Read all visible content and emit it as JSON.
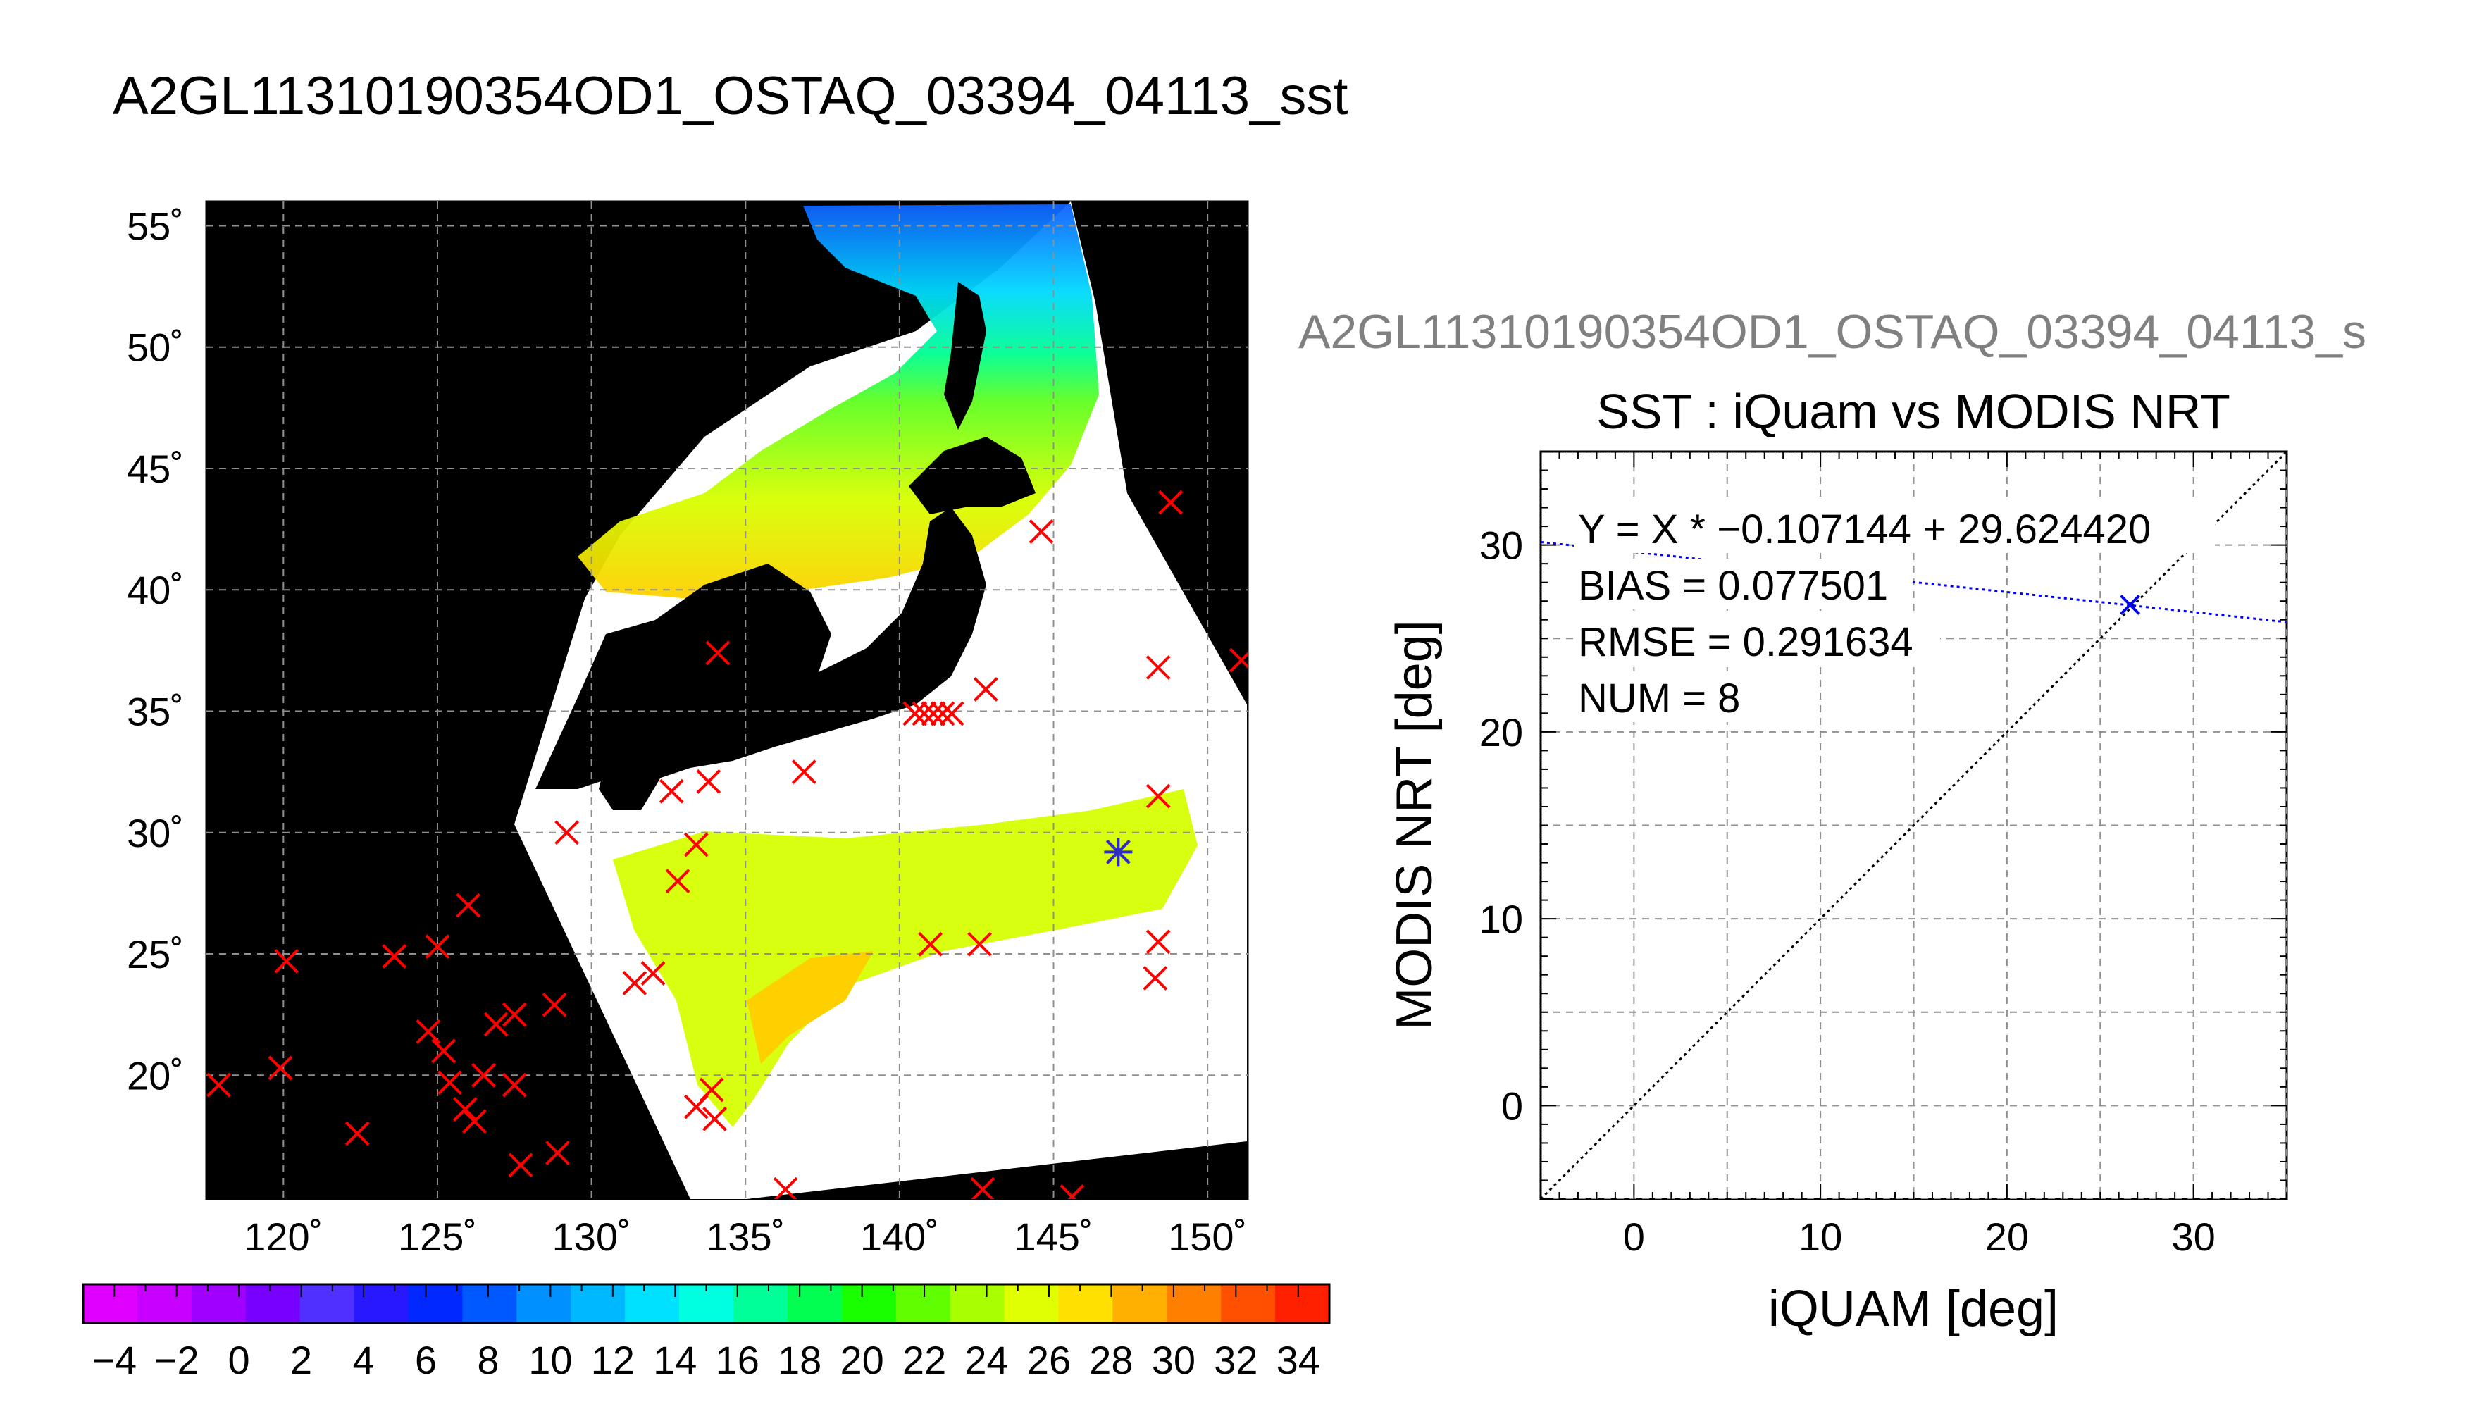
{
  "main_title": "A2GL11310190354OD1_OSTAQ_03394_04113_sst",
  "colors": {
    "background": "#ffffff",
    "land": "#000000",
    "grid": "#909090",
    "marker": "#ff0000",
    "fit_line": "#0000ff",
    "identity_line": "#000000"
  },
  "chart_data": [
    {
      "type": "map",
      "title": "",
      "lon_range": [
        117.5,
        151.3
      ],
      "lat_range": [
        14.9,
        56.0
      ],
      "lon_ticks": [
        120,
        125,
        130,
        135,
        140,
        145,
        150
      ],
      "lat_ticks": [
        20,
        25,
        30,
        35,
        40,
        45,
        50,
        55
      ],
      "lon_tick_labels": [
        "120˚",
        "125˚",
        "130˚",
        "135˚",
        "140˚",
        "145˚",
        "150˚"
      ],
      "lat_tick_labels": [
        "20˚",
        "25˚",
        "30˚",
        "35˚",
        "40˚",
        "45˚",
        "50˚",
        "55˚"
      ],
      "grid": true,
      "points_red_x": [
        [
          117.9,
          19.6
        ],
        [
          119.9,
          20.3
        ],
        [
          120.1,
          24.7
        ],
        [
          122.4,
          17.6
        ],
        [
          123.6,
          24.9
        ],
        [
          124.7,
          21.8
        ],
        [
          125.0,
          25.3
        ],
        [
          125.2,
          21.0
        ],
        [
          125.4,
          19.7
        ],
        [
          125.9,
          18.6
        ],
        [
          126.0,
          27.0
        ],
        [
          126.2,
          18.1
        ],
        [
          126.5,
          20.0
        ],
        [
          126.9,
          22.1
        ],
        [
          127.5,
          19.6
        ],
        [
          127.5,
          22.5
        ],
        [
          127.7,
          16.3
        ],
        [
          128.8,
          22.9
        ],
        [
          128.9,
          16.8
        ],
        [
          129.2,
          30.0
        ],
        [
          131.4,
          23.8
        ],
        [
          132.0,
          24.2
        ],
        [
          132.6,
          31.7
        ],
        [
          132.8,
          28.0
        ],
        [
          133.4,
          29.5
        ],
        [
          133.4,
          18.7
        ],
        [
          133.8,
          32.1
        ],
        [
          133.9,
          19.4
        ],
        [
          134.0,
          18.2
        ],
        [
          134.1,
          37.4
        ],
        [
          136.3,
          15.3
        ],
        [
          136.9,
          32.5
        ],
        [
          140.5,
          34.9
        ],
        [
          140.8,
          34.9
        ],
        [
          141.0,
          25.4
        ],
        [
          141.1,
          34.9
        ],
        [
          141.4,
          34.9
        ],
        [
          141.7,
          34.9
        ],
        [
          142.6,
          25.4
        ],
        [
          142.7,
          15.3
        ],
        [
          142.8,
          35.9
        ],
        [
          144.6,
          42.4
        ],
        [
          145.6,
          15.0
        ],
        [
          147.1,
          29.2
        ],
        [
          148.3,
          24.0
        ],
        [
          148.4,
          31.5
        ],
        [
          148.4,
          25.5
        ],
        [
          148.4,
          36.8
        ],
        [
          148.8,
          43.6
        ],
        [
          151.1,
          37.1
        ]
      ],
      "points_blue_star": [
        [
          147.1,
          29.2
        ]
      ]
    },
    {
      "type": "scatter",
      "title": "SST : iQuam vs MODIS NRT",
      "subtitle": "A2GL11310190354OD1_OSTAQ_03394_04113_s",
      "xlabel": "iQUAM [deg]",
      "ylabel": "MODIS NRT [deg]",
      "xlim": [
        -5,
        35
      ],
      "ylim": [
        -5,
        35
      ],
      "xticks": [
        0,
        10,
        20,
        30
      ],
      "yticks": [
        0,
        10,
        20,
        30
      ],
      "grid": true,
      "points": [
        [
          26.6,
          26.8
        ]
      ],
      "fit": {
        "slope": -0.107144,
        "intercept": 29.62442
      },
      "stats": [
        "Y = X * −0.107144 + 29.624420",
        "BIAS = 0.077501",
        "RMSE = 0.291634",
        "NUM = 8"
      ]
    },
    {
      "type": "colorbar",
      "title": "",
      "range": [
        -5,
        35
      ],
      "step": 2,
      "tick_labels": [
        "−4",
        "−2",
        "0",
        "2",
        "4",
        "6",
        "8",
        "10",
        "12",
        "14",
        "16",
        "18",
        "20",
        "22",
        "24",
        "26",
        "28",
        "30",
        "32",
        "34"
      ],
      "colors": [
        "#e000ff",
        "#c800ff",
        "#a000ff",
        "#7800ff",
        "#5030ff",
        "#2818ff",
        "#0028ff",
        "#0058ff",
        "#0090ff",
        "#00b8ff",
        "#00e0ff",
        "#00ffe0",
        "#00ff98",
        "#00ff50",
        "#18ff00",
        "#60ff00",
        "#a8ff00",
        "#e0ff00",
        "#ffe000",
        "#ffb000",
        "#ff8000",
        "#ff5000",
        "#ff2000"
      ]
    }
  ]
}
